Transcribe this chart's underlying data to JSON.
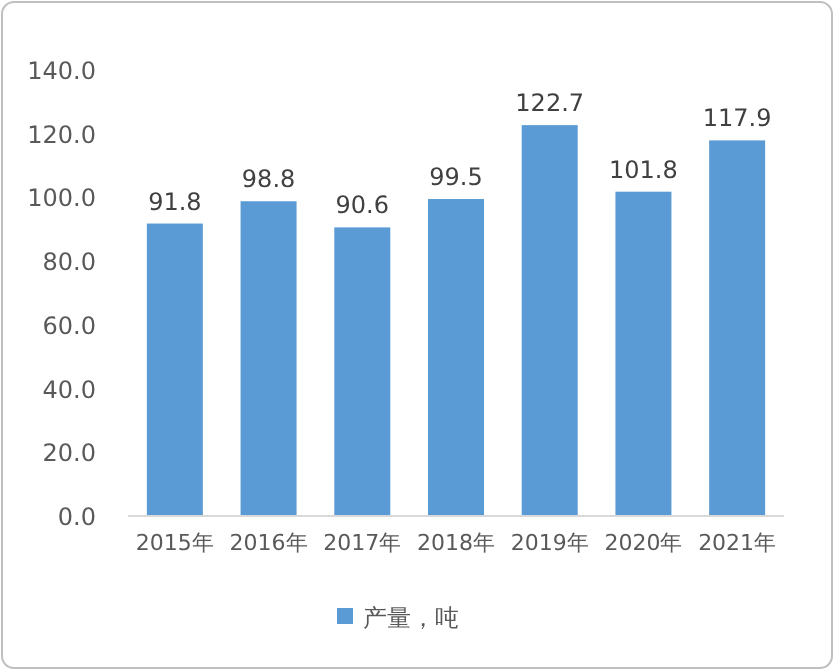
{
  "chart_data": {
    "type": "bar",
    "categories": [
      "2015年",
      "2016年",
      "2017年",
      "2018年",
      "2019年",
      "2020年",
      "2021年"
    ],
    "series": [
      {
        "name": "产量，吨",
        "color": "#5b9bd5",
        "values": [
          91.8,
          98.8,
          90.6,
          99.5,
          122.7,
          101.8,
          117.9
        ]
      }
    ],
    "ylim": [
      0,
      140
    ],
    "yticks": [
      {
        "value": 0,
        "label": "0.0"
      },
      {
        "value": 20,
        "label": "20.0"
      },
      {
        "value": 40,
        "label": "40.0"
      },
      {
        "value": 60,
        "label": "60.0"
      },
      {
        "value": 80,
        "label": "80.0"
      },
      {
        "value": 100,
        "label": "100.0"
      },
      {
        "value": 120,
        "label": "120.0"
      },
      {
        "value": 140,
        "label": "140.0"
      }
    ],
    "data_labels": true,
    "legend": "bottom"
  }
}
